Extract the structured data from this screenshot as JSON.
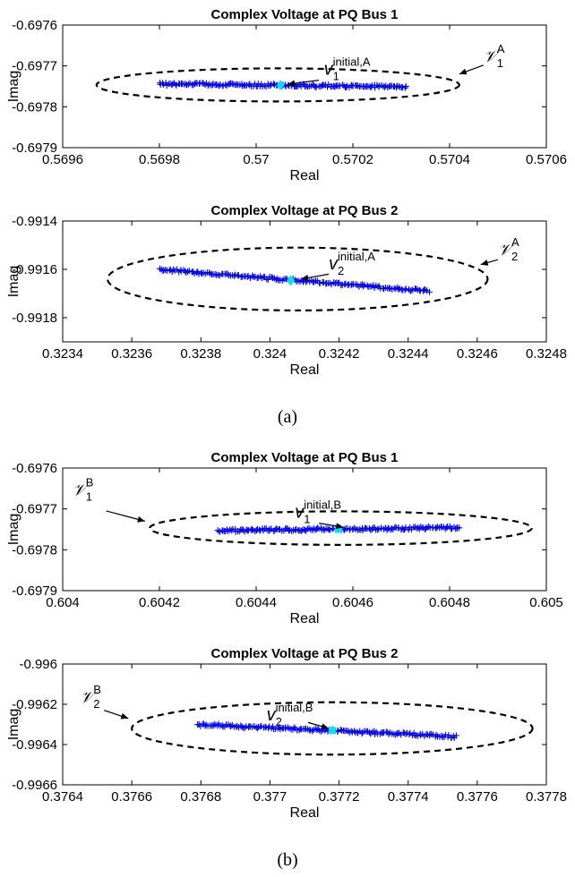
{
  "panel_labels": {
    "a": "(a)",
    "b": "(b)"
  },
  "chart_data": [
    {
      "type": "scatter",
      "title": "Complex Voltage at PQ Bus 1",
      "xlabel": "Real",
      "ylabel": "Imag",
      "xlim": [
        0.5696,
        0.5706
      ],
      "ylim": [
        -0.6979,
        -0.6976
      ],
      "xticks": [
        0.5696,
        0.5698,
        0.57,
        0.5702,
        0.5704,
        0.5706
      ],
      "xtick_labels": [
        "0.5696",
        "0.5698",
        "0.57",
        "0.5702",
        "0.5704",
        "0.5706"
      ],
      "yticks": [
        -0.6979,
        -0.6978,
        -0.6977,
        -0.6976
      ],
      "ytick_labels": [
        "-0.6979",
        "-0.6978",
        "-0.6977",
        "-0.6976"
      ],
      "grid": false,
      "series": [
        {
          "marker": "+",
          "color": "#0000ff",
          "x_range": [
            0.5698,
            0.57031
          ],
          "y_range": [
            -0.697744,
            -0.697751
          ]
        }
      ],
      "point": {
        "x": 0.57005,
        "y": -0.697747,
        "color": "#00e5ff",
        "marker": "diamond"
      },
      "ellipse": {
        "center": [
          0.57,
          -0.697747
        ],
        "x_range": [
          0.56967,
          0.57042
        ],
        "y_range": [
          -0.697706,
          -0.697787
        ],
        "style": "dashed"
      },
      "annotations": {
        "point_label": {
          "base": "v",
          "sub": "1",
          "sup": "initial,A"
        },
        "set_label": {
          "base": "𝒱",
          "sub": "1",
          "sup": "A"
        }
      },
      "label_pos": {
        "point": [
          0.57014,
          -0.697722
        ],
        "set": [
          0.57047,
          -0.69769
        ]
      },
      "arrow_from": {
        "point": [
          0.57013,
          -0.697735
        ],
        "set": [
          0.57047,
          -0.697698
        ]
      },
      "arrow_to": {
        "point": [
          0.570065,
          -0.697745
        ],
        "set": [
          0.57042,
          -0.69772
        ]
      }
    },
    {
      "type": "scatter",
      "title": "Complex Voltage at PQ Bus 2",
      "xlabel": "Real",
      "ylabel": "Imag",
      "xlim": [
        0.3234,
        0.3248
      ],
      "ylim": [
        -0.9919,
        -0.9914
      ],
      "xticks": [
        0.3234,
        0.3236,
        0.3238,
        0.324,
        0.3242,
        0.3244,
        0.3246,
        0.3248
      ],
      "xtick_labels": [
        "0.3234",
        "0.3236",
        "0.3238",
        "0.324",
        "0.3242",
        "0.3244",
        "0.3246",
        "0.3248"
      ],
      "yticks": [
        -0.9918,
        -0.9916,
        -0.9914
      ],
      "ytick_labels": [
        "-0.9918",
        "-0.9916",
        "-0.9914"
      ],
      "grid": false,
      "series": [
        {
          "marker": "+",
          "color": "#0000ff",
          "x_range": [
            0.32368,
            0.32446
          ],
          "y_range": [
            -0.9916,
            -0.99169
          ]
        }
      ],
      "point": {
        "x": 0.32406,
        "y": -0.991646,
        "color": "#00e5ff",
        "marker": "diamond"
      },
      "ellipse": {
        "center": [
          0.32408,
          -0.99164
        ],
        "x_range": [
          0.32353,
          0.32463
        ],
        "y_range": [
          -0.99151,
          -0.99177
        ],
        "style": "dashed"
      },
      "annotations": {
        "point_label": {
          "base": "v",
          "sub": "2",
          "sup": "initial,A"
        },
        "set_label": {
          "base": "𝒱",
          "sub": "2",
          "sup": "A"
        }
      },
      "label_pos": {
        "point": [
          0.32417,
          -0.9916
        ],
        "set": [
          0.32466,
          -0.99154
        ]
      },
      "arrow_from": {
        "point": [
          0.32417,
          -0.99162
        ],
        "set": [
          0.32466,
          -0.99156
        ]
      },
      "arrow_to": {
        "point": [
          0.32409,
          -0.99164
        ],
        "set": [
          0.32461,
          -0.99158
        ]
      }
    },
    {
      "type": "scatter",
      "title": "Complex Voltage at PQ Bus 1",
      "xlabel": "Real",
      "ylabel": "Imag",
      "xlim": [
        0.604,
        0.605
      ],
      "ylim": [
        -0.6979,
        -0.6976
      ],
      "xticks": [
        0.604,
        0.6042,
        0.6044,
        0.6046,
        0.6048,
        0.605
      ],
      "xtick_labels": [
        "0.604",
        "0.6042",
        "0.6044",
        "0.6046",
        "0.6048",
        "0.605"
      ],
      "yticks": [
        -0.6979,
        -0.6978,
        -0.6977,
        -0.6976
      ],
      "ytick_labels": [
        "-0.6979",
        "-0.6978",
        "-0.6977",
        "-0.6976"
      ],
      "grid": false,
      "series": [
        {
          "marker": "+",
          "color": "#0000ff",
          "x_range": [
            0.60432,
            0.60482
          ],
          "y_range": [
            -0.697753,
            -0.697746
          ]
        }
      ],
      "point": {
        "x": 0.60457,
        "y": -0.69775,
        "color": "#00e5ff",
        "marker": "square"
      },
      "ellipse": {
        "center": [
          0.60457,
          -0.697748
        ],
        "x_range": [
          0.60418,
          0.60497
        ],
        "y_range": [
          -0.697706,
          -0.697788
        ],
        "style": "dashed"
      },
      "annotations": {
        "point_label": {
          "base": "v",
          "sub": "1",
          "sup": "initial,B"
        },
        "set_label": {
          "base": "𝒱",
          "sub": "1",
          "sup": "B"
        }
      },
      "label_pos": {
        "point": [
          0.60448,
          -0.697722
        ],
        "set": [
          0.60402,
          -0.697667
        ]
      },
      "arrow_from": {
        "point": [
          0.60453,
          -0.697735
        ],
        "set": [
          0.60409,
          -0.697705
        ]
      },
      "arrow_to": {
        "point": [
          0.60458,
          -0.697745
        ],
        "set": [
          0.60417,
          -0.69773
        ]
      }
    },
    {
      "type": "scatter",
      "title": "Complex Voltage at PQ Bus 2",
      "xlabel": "Real",
      "ylabel": "Imag",
      "xlim": [
        0.3764,
        0.3778
      ],
      "ylim": [
        -0.9966,
        -0.996
      ],
      "xticks": [
        0.3764,
        0.3766,
        0.3768,
        0.377,
        0.3772,
        0.3774,
        0.3776,
        0.3778
      ],
      "xtick_labels": [
        "0.3764",
        "0.3766",
        "0.3768",
        "0.377",
        "0.3772",
        "0.3774",
        "0.3776",
        "0.3778"
      ],
      "yticks": [
        -0.9966,
        -0.9964,
        -0.9962,
        -0.996
      ],
      "ytick_labels": [
        "-0.9966",
        "-0.9964",
        "-0.9962",
        "-0.996"
      ],
      "grid": false,
      "series": [
        {
          "marker": "+",
          "color": "#0000ff",
          "x_range": [
            0.37679,
            0.37754
          ],
          "y_range": [
            -0.9963,
            -0.99636
          ]
        }
      ],
      "point": {
        "x": 0.37718,
        "y": -0.99633,
        "color": "#00e5ff",
        "marker": "square"
      },
      "ellipse": {
        "center": [
          0.37717,
          -0.99632
        ],
        "x_range": [
          0.3766,
          0.37776
        ],
        "y_range": [
          -0.99619,
          -0.99645
        ],
        "style": "dashed"
      },
      "annotations": {
        "point_label": {
          "base": "v",
          "sub": "2",
          "sup": "initial,B"
        },
        "set_label": {
          "base": "𝒱",
          "sub": "2",
          "sup": "B"
        }
      },
      "label_pos": {
        "point": [
          0.37699,
          -0.99628
        ],
        "set": [
          0.37645,
          -0.99619
        ]
      },
      "arrow_from": {
        "point": [
          0.37711,
          -0.99629
        ],
        "set": [
          0.37652,
          -0.99623
        ]
      },
      "arrow_to": {
        "point": [
          0.37717,
          -0.99632
        ],
        "set": [
          0.37659,
          -0.99627
        ]
      }
    }
  ]
}
